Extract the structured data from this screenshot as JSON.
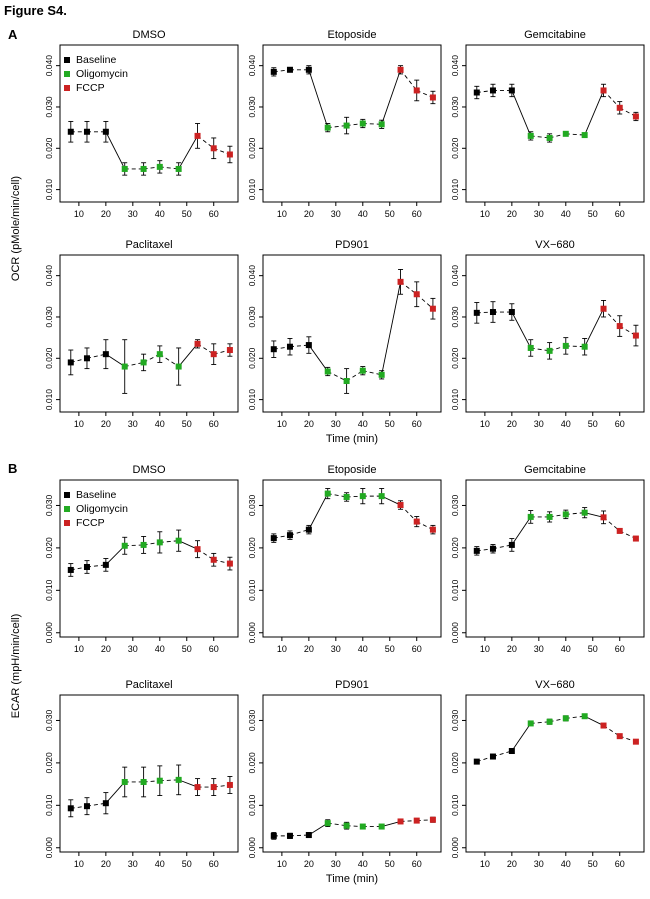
{
  "figure": {
    "title": "Figure S4.",
    "panel_labels": [
      "A",
      "B"
    ],
    "legend": [
      {
        "label": "Baseline",
        "color": "#000000"
      },
      {
        "label": "Oligomycin",
        "color": "#22aa22"
      },
      {
        "label": "FCCP",
        "color": "#cc2222"
      }
    ]
  },
  "chart_data": [
    {
      "type": "line",
      "panel": "A",
      "title": "DMSO",
      "xlabel": "",
      "ylabel": "OCR (pMole/min/cell)",
      "x": [
        7,
        13,
        20,
        27,
        34,
        40,
        47,
        54,
        60,
        66
      ],
      "xticks": [
        10,
        20,
        30,
        40,
        50,
        60
      ],
      "xlim": [
        3,
        69
      ],
      "ylim": [
        0.007,
        0.045
      ],
      "yticks": [
        0.01,
        0.02,
        0.03,
        0.04
      ],
      "ytick_labels": [
        "0.010",
        "0.020",
        "0.030",
        "0.040"
      ],
      "phases": [
        "Baseline",
        "Baseline",
        "Baseline",
        "Oligomycin",
        "Oligomycin",
        "Oligomycin",
        "Oligomycin",
        "FCCP",
        "FCCP",
        "FCCP"
      ],
      "y": [
        0.024,
        0.024,
        0.024,
        0.015,
        0.015,
        0.0155,
        0.015,
        0.023,
        0.02,
        0.0185
      ],
      "err": [
        0.0025,
        0.0025,
        0.0025,
        0.0015,
        0.0015,
        0.0015,
        0.0015,
        0.003,
        0.0025,
        0.002
      ]
    },
    {
      "type": "line",
      "panel": "A",
      "title": "Etoposide",
      "xlabel": "",
      "ylabel": "",
      "x": [
        7,
        13,
        20,
        27,
        34,
        40,
        47,
        54,
        60,
        66
      ],
      "xticks": [
        10,
        20,
        30,
        40,
        50,
        60
      ],
      "xlim": [
        3,
        69
      ],
      "ylim": [
        0.007,
        0.045
      ],
      "yticks": [
        0.01,
        0.02,
        0.03,
        0.04
      ],
      "ytick_labels": [
        "0.010",
        "0.020",
        "0.030",
        "0.040"
      ],
      "phases": [
        "Baseline",
        "Baseline",
        "Baseline",
        "Oligomycin",
        "Oligomycin",
        "Oligomycin",
        "Oligomycin",
        "FCCP",
        "FCCP",
        "FCCP"
      ],
      "y": [
        0.0385,
        0.039,
        0.039,
        0.025,
        0.0255,
        0.026,
        0.0258,
        0.039,
        0.034,
        0.0323
      ],
      "err": [
        0.001,
        0.0005,
        0.001,
        0.001,
        0.002,
        0.001,
        0.001,
        0.001,
        0.0025,
        0.0015
      ]
    },
    {
      "type": "line",
      "panel": "A",
      "title": "Gemcitabine",
      "xlabel": "",
      "ylabel": "",
      "x": [
        7,
        13,
        20,
        27,
        34,
        40,
        47,
        54,
        60,
        66
      ],
      "xticks": [
        10,
        20,
        30,
        40,
        50,
        60
      ],
      "xlim": [
        3,
        69
      ],
      "ylim": [
        0.007,
        0.045
      ],
      "yticks": [
        0.01,
        0.02,
        0.03,
        0.04
      ],
      "ytick_labels": [
        "0.010",
        "0.020",
        "0.030",
        "0.040"
      ],
      "phases": [
        "Baseline",
        "Baseline",
        "Baseline",
        "Oligomycin",
        "Oligomycin",
        "Oligomycin",
        "Oligomycin",
        "FCCP",
        "FCCP",
        "FCCP"
      ],
      "y": [
        0.0335,
        0.034,
        0.034,
        0.023,
        0.0225,
        0.0235,
        0.0232,
        0.034,
        0.0298,
        0.0277
      ],
      "err": [
        0.0015,
        0.0015,
        0.0015,
        0.001,
        0.001,
        0.0005,
        0.0005,
        0.0015,
        0.0015,
        0.001
      ]
    },
    {
      "type": "line",
      "panel": "A",
      "title": "Paclitaxel",
      "xlabel": "",
      "ylabel": "",
      "x": [
        7,
        13,
        20,
        27,
        34,
        40,
        47,
        54,
        60,
        66
      ],
      "xticks": [
        10,
        20,
        30,
        40,
        50,
        60
      ],
      "xlim": [
        3,
        69
      ],
      "ylim": [
        0.007,
        0.045
      ],
      "yticks": [
        0.01,
        0.02,
        0.03,
        0.04
      ],
      "ytick_labels": [
        "0.010",
        "0.020",
        "0.030",
        "0.040"
      ],
      "phases": [
        "Baseline",
        "Baseline",
        "Baseline",
        "Oligomycin",
        "Oligomycin",
        "Oligomycin",
        "Oligomycin",
        "FCCP",
        "FCCP",
        "FCCP"
      ],
      "y": [
        0.019,
        0.02,
        0.021,
        0.018,
        0.019,
        0.021,
        0.018,
        0.0235,
        0.021,
        0.022
      ],
      "err": [
        0.003,
        0.0025,
        0.0035,
        0.0065,
        0.002,
        0.002,
        0.0045,
        0.001,
        0.0025,
        0.0015
      ]
    },
    {
      "type": "line",
      "panel": "A",
      "title": "PD901",
      "xlabel": "Time (min)",
      "ylabel": "",
      "x": [
        7,
        13,
        20,
        27,
        34,
        40,
        47,
        54,
        60,
        66
      ],
      "xticks": [
        10,
        20,
        30,
        40,
        50,
        60
      ],
      "xlim": [
        3,
        69
      ],
      "ylim": [
        0.007,
        0.045
      ],
      "yticks": [
        0.01,
        0.02,
        0.03,
        0.04
      ],
      "ytick_labels": [
        "0.010",
        "0.020",
        "0.030",
        "0.040"
      ],
      "phases": [
        "Baseline",
        "Baseline",
        "Baseline",
        "Oligomycin",
        "Oligomycin",
        "Oligomycin",
        "Oligomycin",
        "FCCP",
        "FCCP",
        "FCCP"
      ],
      "y": [
        0.0222,
        0.0228,
        0.0232,
        0.0168,
        0.0145,
        0.017,
        0.016,
        0.0385,
        0.0355,
        0.032
      ],
      "err": [
        0.002,
        0.002,
        0.002,
        0.001,
        0.003,
        0.001,
        0.001,
        0.003,
        0.003,
        0.0025
      ]
    },
    {
      "type": "line",
      "panel": "A",
      "title": "VX−680",
      "xlabel": "",
      "ylabel": "",
      "x": [
        7,
        13,
        20,
        27,
        34,
        40,
        47,
        54,
        60,
        66
      ],
      "xticks": [
        10,
        20,
        30,
        40,
        50,
        60
      ],
      "xlim": [
        3,
        69
      ],
      "ylim": [
        0.007,
        0.045
      ],
      "yticks": [
        0.01,
        0.02,
        0.03,
        0.04
      ],
      "ytick_labels": [
        "0.010",
        "0.020",
        "0.030",
        "0.040"
      ],
      "phases": [
        "Baseline",
        "Baseline",
        "Baseline",
        "Oligomycin",
        "Oligomycin",
        "Oligomycin",
        "Oligomycin",
        "FCCP",
        "FCCP",
        "FCCP"
      ],
      "y": [
        0.031,
        0.0312,
        0.0312,
        0.0225,
        0.0218,
        0.023,
        0.0228,
        0.032,
        0.0278,
        0.0255
      ],
      "err": [
        0.0025,
        0.0025,
        0.002,
        0.002,
        0.002,
        0.002,
        0.002,
        0.002,
        0.0025,
        0.0025
      ]
    },
    {
      "type": "line",
      "panel": "B",
      "title": "DMSO",
      "xlabel": "",
      "ylabel": "ECAR (mpH/min/cell)",
      "x": [
        7,
        13,
        20,
        27,
        34,
        40,
        47,
        54,
        60,
        66
      ],
      "xticks": [
        10,
        20,
        30,
        40,
        50,
        60
      ],
      "xlim": [
        3,
        69
      ],
      "ylim": [
        -0.001,
        0.036
      ],
      "yticks": [
        0.0,
        0.01,
        0.02,
        0.03
      ],
      "ytick_labels": [
        "0.000",
        "0.010",
        "0.020",
        "0.030"
      ],
      "phases": [
        "Baseline",
        "Baseline",
        "Baseline",
        "Oligomycin",
        "Oligomycin",
        "Oligomycin",
        "Oligomycin",
        "FCCP",
        "FCCP",
        "FCCP"
      ],
      "y": [
        0.0148,
        0.0155,
        0.016,
        0.0205,
        0.0207,
        0.0213,
        0.0217,
        0.0197,
        0.0172,
        0.0163
      ],
      "err": [
        0.0015,
        0.0015,
        0.0015,
        0.002,
        0.002,
        0.0025,
        0.0025,
        0.002,
        0.0015,
        0.0015
      ]
    },
    {
      "type": "line",
      "panel": "B",
      "title": "Etoposide",
      "xlabel": "",
      "ylabel": "",
      "x": [
        7,
        13,
        20,
        27,
        34,
        40,
        47,
        54,
        60,
        66
      ],
      "xticks": [
        10,
        20,
        30,
        40,
        50,
        60
      ],
      "xlim": [
        3,
        69
      ],
      "ylim": [
        -0.001,
        0.036
      ],
      "yticks": [
        0.0,
        0.01,
        0.02,
        0.03
      ],
      "ytick_labels": [
        "0.000",
        "0.010",
        "0.020",
        "0.030"
      ],
      "phases": [
        "Baseline",
        "Baseline",
        "Baseline",
        "Oligomycin",
        "Oligomycin",
        "Oligomycin",
        "Oligomycin",
        "FCCP",
        "FCCP",
        "FCCP"
      ],
      "y": [
        0.0223,
        0.023,
        0.0243,
        0.0328,
        0.032,
        0.0322,
        0.0322,
        0.0301,
        0.0262,
        0.0243
      ],
      "err": [
        0.001,
        0.001,
        0.001,
        0.0012,
        0.001,
        0.0018,
        0.0018,
        0.001,
        0.0012,
        0.001
      ]
    },
    {
      "type": "line",
      "panel": "B",
      "title": "Gemcitabine",
      "xlabel": "",
      "ylabel": "",
      "x": [
        7,
        13,
        20,
        27,
        34,
        40,
        47,
        54,
        60,
        66
      ],
      "xticks": [
        10,
        20,
        30,
        40,
        50,
        60
      ],
      "xlim": [
        3,
        69
      ],
      "ylim": [
        -0.001,
        0.036
      ],
      "yticks": [
        0.0,
        0.01,
        0.02,
        0.03
      ],
      "ytick_labels": [
        "0.000",
        "0.010",
        "0.020",
        "0.030"
      ],
      "phases": [
        "Baseline",
        "Baseline",
        "Baseline",
        "Oligomycin",
        "Oligomycin",
        "Oligomycin",
        "Oligomycin",
        "FCCP",
        "FCCP",
        "FCCP"
      ],
      "y": [
        0.0193,
        0.0198,
        0.0207,
        0.0273,
        0.0273,
        0.0279,
        0.0283,
        0.0272,
        0.024,
        0.0222
      ],
      "err": [
        0.001,
        0.001,
        0.0015,
        0.0015,
        0.0012,
        0.001,
        0.0012,
        0.0015,
        0.0005,
        0.0005
      ]
    },
    {
      "type": "line",
      "panel": "B",
      "title": "Paclitaxel",
      "xlabel": "",
      "ylabel": "",
      "x": [
        7,
        13,
        20,
        27,
        34,
        40,
        47,
        54,
        60,
        66
      ],
      "xticks": [
        10,
        20,
        30,
        40,
        50,
        60
      ],
      "xlim": [
        3,
        69
      ],
      "ylim": [
        -0.001,
        0.036
      ],
      "yticks": [
        0.0,
        0.01,
        0.02,
        0.03
      ],
      "ytick_labels": [
        "0.000",
        "0.010",
        "0.020",
        "0.030"
      ],
      "phases": [
        "Baseline",
        "Baseline",
        "Baseline",
        "Oligomycin",
        "Oligomycin",
        "Oligomycin",
        "Oligomycin",
        "FCCP",
        "FCCP",
        "FCCP"
      ],
      "y": [
        0.0093,
        0.0098,
        0.0105,
        0.0155,
        0.0155,
        0.0158,
        0.016,
        0.0143,
        0.0143,
        0.0148
      ],
      "err": [
        0.002,
        0.002,
        0.0025,
        0.0035,
        0.0035,
        0.0035,
        0.0035,
        0.002,
        0.002,
        0.002
      ]
    },
    {
      "type": "line",
      "panel": "B",
      "title": "PD901",
      "xlabel": "Time (min)",
      "ylabel": "",
      "x": [
        7,
        13,
        20,
        27,
        34,
        40,
        47,
        54,
        60,
        66
      ],
      "xticks": [
        10,
        20,
        30,
        40,
        50,
        60
      ],
      "xlim": [
        3,
        69
      ],
      "ylim": [
        -0.001,
        0.036
      ],
      "yticks": [
        0.0,
        0.01,
        0.02,
        0.03
      ],
      "ytick_labels": [
        "0.000",
        "0.010",
        "0.020",
        "0.030"
      ],
      "phases": [
        "Baseline",
        "Baseline",
        "Baseline",
        "Oligomycin",
        "Oligomycin",
        "Oligomycin",
        "Oligomycin",
        "FCCP",
        "FCCP",
        "FCCP"
      ],
      "y": [
        0.0028,
        0.0028,
        0.003,
        0.0058,
        0.0052,
        0.005,
        0.005,
        0.0062,
        0.0064,
        0.0066
      ],
      "err": [
        0.0008,
        0.0006,
        0.0006,
        0.0008,
        0.0008,
        0.0004,
        0.0004,
        0.0005,
        0.0005,
        0.0006
      ]
    },
    {
      "type": "line",
      "panel": "B",
      "title": "VX−680",
      "xlabel": "",
      "ylabel": "",
      "x": [
        7,
        13,
        20,
        27,
        34,
        40,
        47,
        54,
        60,
        66
      ],
      "xticks": [
        10,
        20,
        30,
        40,
        50,
        60
      ],
      "xlim": [
        3,
        69
      ],
      "ylim": [
        -0.001,
        0.036
      ],
      "yticks": [
        0.0,
        0.01,
        0.02,
        0.03
      ],
      "ytick_labels": [
        "0.000",
        "0.010",
        "0.020",
        "0.030"
      ],
      "phases": [
        "Baseline",
        "Baseline",
        "Baseline",
        "Oligomycin",
        "Oligomycin",
        "Oligomycin",
        "Oligomycin",
        "FCCP",
        "FCCP",
        "FCCP"
      ],
      "y": [
        0.0203,
        0.0215,
        0.0228,
        0.0293,
        0.0297,
        0.0305,
        0.031,
        0.0288,
        0.0263,
        0.025
      ],
      "err": [
        0.0004,
        0.0004,
        0.0004,
        0.0004,
        0.0006,
        0.0006,
        0.0004,
        0.0004,
        0.0004,
        0.0004
      ]
    }
  ]
}
